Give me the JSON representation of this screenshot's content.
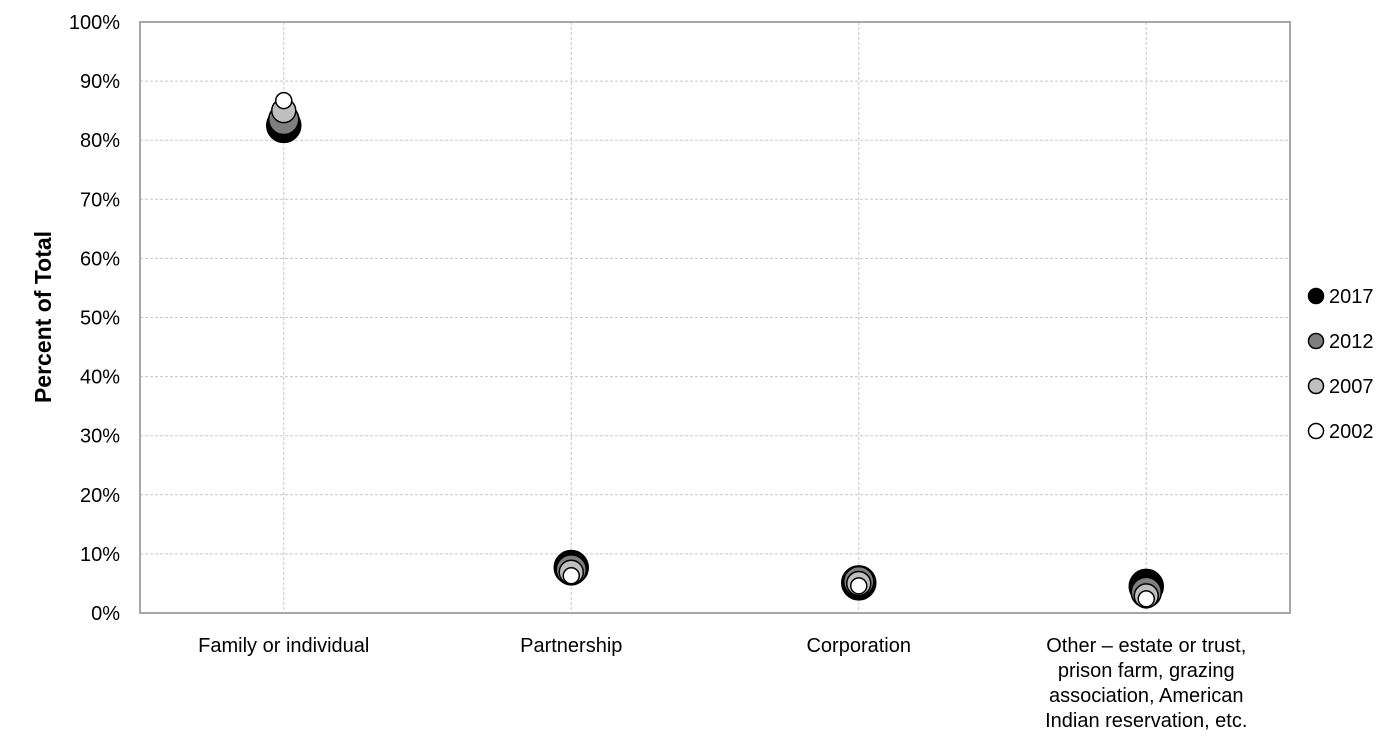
{
  "chart_data": {
    "type": "scatter",
    "title": "",
    "xlabel": "",
    "ylabel": "Percent of Total",
    "ylim": [
      0,
      100
    ],
    "y_ticks": [
      "0%",
      "10%",
      "20%",
      "30%",
      "40%",
      "50%",
      "60%",
      "70%",
      "80%",
      "90%",
      "100%"
    ],
    "categories": [
      [
        "Family or individual"
      ],
      [
        "Partnership"
      ],
      [
        "Corporation"
      ],
      [
        "Other – estate or trust,",
        "prison farm, grazing",
        "association, American",
        "Indian reservation, etc."
      ]
    ],
    "series": [
      {
        "name": "2017",
        "values": [
          82.5,
          7.7,
          5.1,
          4.5
        ],
        "color": "#000000"
      },
      {
        "name": "2012",
        "values": [
          83.5,
          7.3,
          5.3,
          3.5
        ],
        "color": "#7f7f7f"
      },
      {
        "name": "2007",
        "values": [
          85.0,
          6.9,
          5.0,
          2.9
        ],
        "color": "#bfbfbf"
      },
      {
        "name": "2002",
        "values": [
          86.7,
          6.3,
          4.6,
          2.4
        ],
        "color": "#ffffff"
      }
    ],
    "grid": true,
    "legend_position": "right"
  }
}
